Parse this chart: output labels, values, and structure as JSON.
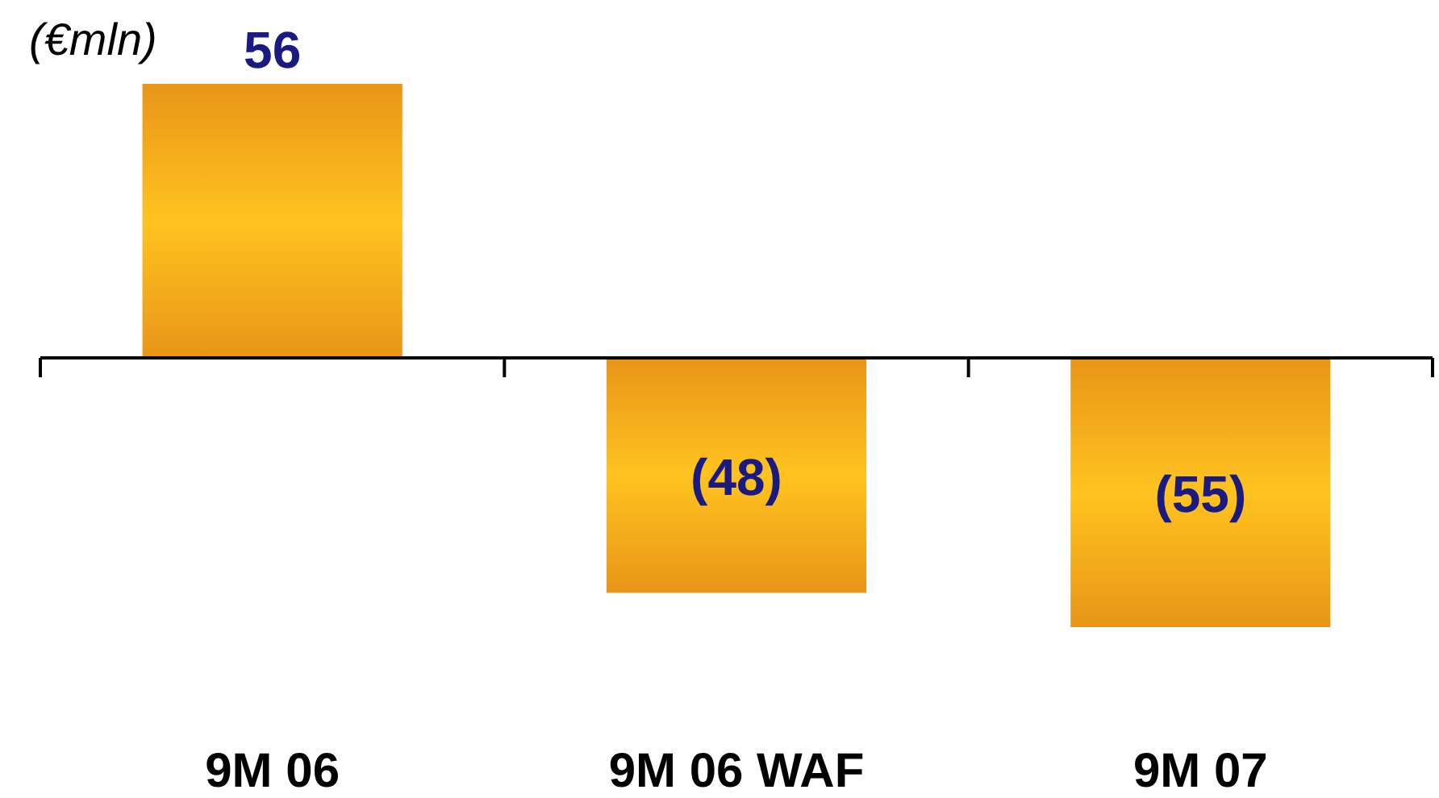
{
  "chart_data": {
    "type": "bar",
    "ylabel": "(€mln)",
    "categories": [
      "9M 06",
      "9M 06 WAF",
      "9M 07"
    ],
    "values": [
      56,
      -48,
      -55
    ],
    "value_labels": [
      "56",
      "(48)",
      "(55)"
    ],
    "color": "#ffa31a"
  }
}
